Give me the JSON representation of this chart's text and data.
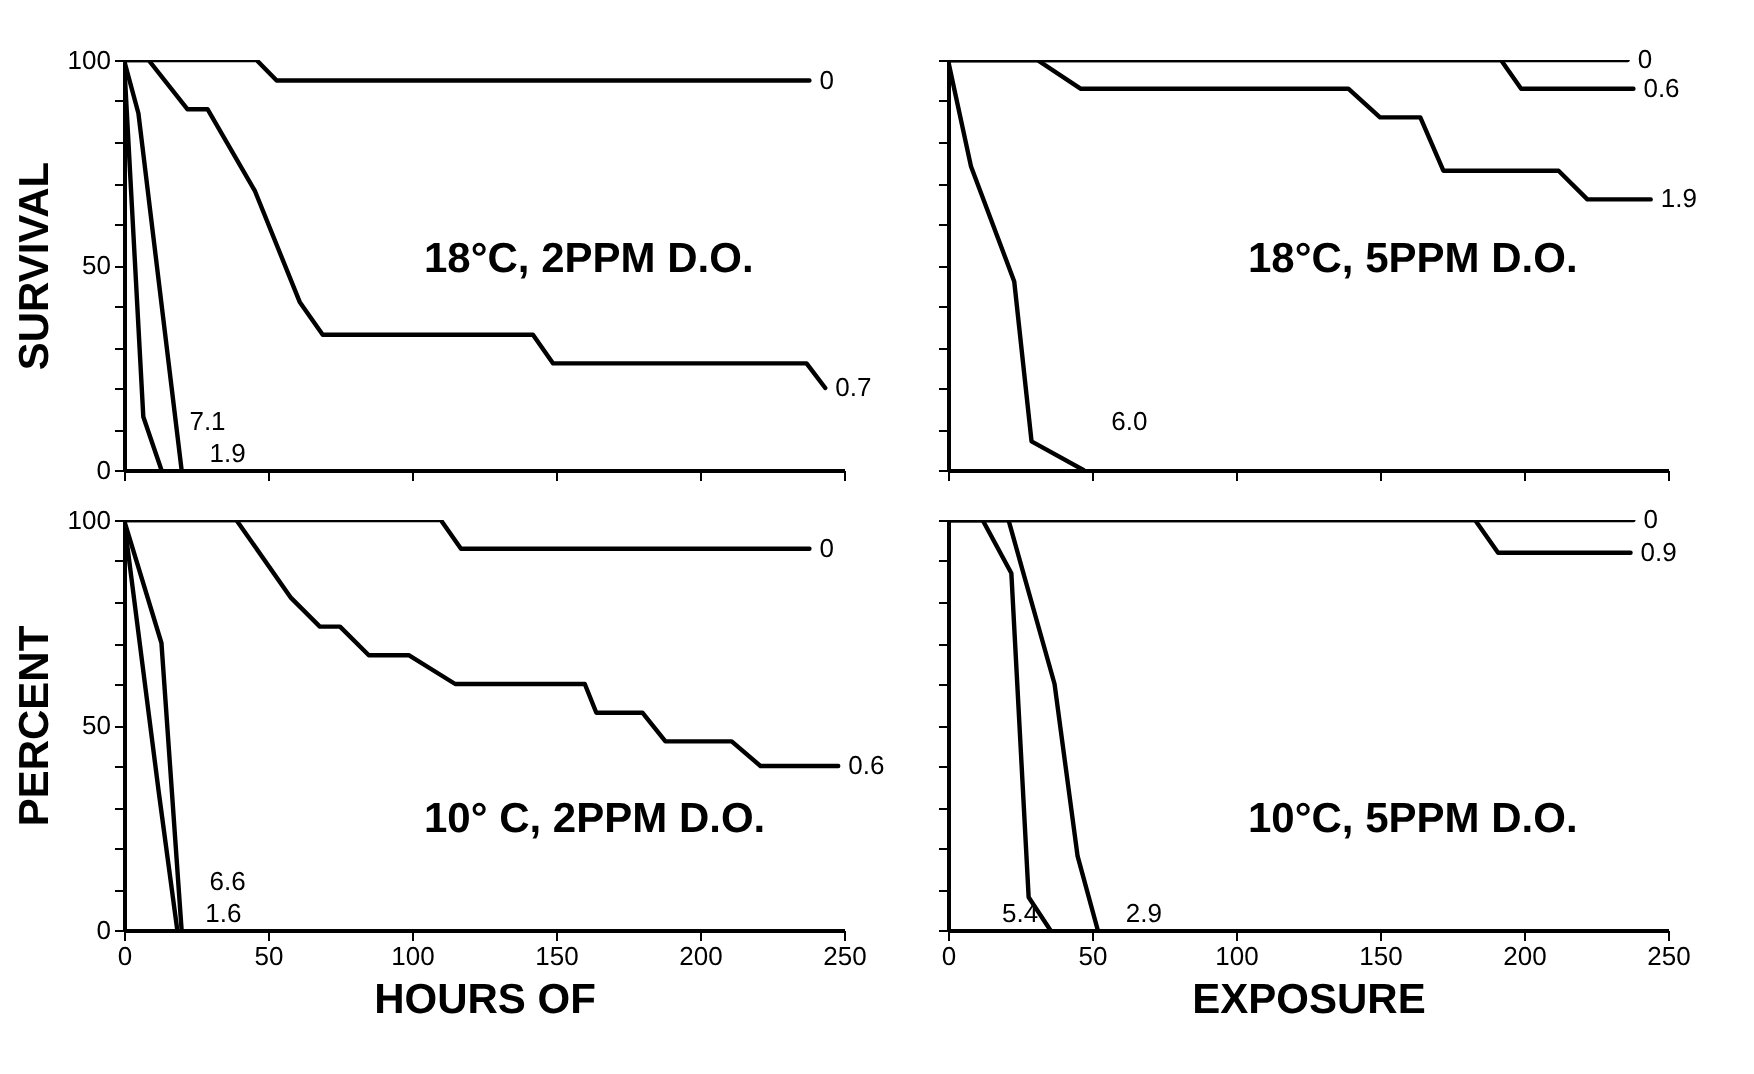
{
  "chart_data": [
    {
      "type": "line",
      "title": "18°C, 2PPM D.O.",
      "ylabel": "SURVIVAL",
      "xlim": [
        0,
        250
      ],
      "ylim": [
        0,
        100
      ],
      "xticks": [
        0,
        50,
        100,
        150,
        200,
        250
      ],
      "yticks": [
        0,
        {
          "value": 10,
          "label": null
        },
        {
          "value": 20,
          "label": null
        },
        {
          "value": 30,
          "label": null
        },
        {
          "value": 40,
          "label": null
        },
        50,
        {
          "value": 60,
          "label": null
        },
        {
          "value": 70,
          "label": null
        },
        {
          "value": 80,
          "label": null
        },
        {
          "value": 90,
          "label": null
        },
        100
      ],
      "tick_labels": "y",
      "series": [
        {
          "name": "0",
          "color": "#000000",
          "x": [
            0,
            46,
            53,
            238
          ],
          "values": [
            100,
            100,
            95,
            95
          ]
        },
        {
          "name": "0.7",
          "color": "#000000",
          "x": [
            0,
            8.5,
            22,
            29,
            45.5,
            61,
            69,
            142,
            149,
            237,
            243.5
          ],
          "values": [
            100,
            100,
            88,
            88,
            68,
            41,
            33,
            33,
            26,
            26,
            20
          ]
        },
        {
          "name": "7.1",
          "color": "#000000",
          "x": [
            0,
            6.7,
            13
          ],
          "values": [
            100,
            13,
            0
          ]
        },
        {
          "name": "1.9",
          "color": "#000000",
          "x": [
            0,
            5,
            20
          ],
          "values": [
            100,
            87,
            0
          ]
        }
      ]
    },
    {
      "type": "line",
      "title": "18°C, 5PPM D.O.",
      "xlim": [
        0,
        250
      ],
      "ylim": [
        0,
        100
      ],
      "xticks": [
        0,
        50,
        100,
        150,
        200,
        250
      ],
      "yticks": [
        0,
        {
          "value": 10,
          "label": null
        },
        {
          "value": 20,
          "label": null
        },
        {
          "value": 30,
          "label": null
        },
        {
          "value": 40,
          "label": null
        },
        50,
        {
          "value": 60,
          "label": null
        },
        {
          "value": 70,
          "label": null
        },
        {
          "value": 80,
          "label": null
        },
        {
          "value": 90,
          "label": null
        },
        100
      ],
      "tick_labels": false,
      "series": [
        {
          "name": "0",
          "color": "#000000",
          "x": [
            0,
            236
          ],
          "values": [
            100,
            100
          ]
        },
        {
          "name": "0.6",
          "color": "#000000",
          "x": [
            0,
            192,
            199,
            238
          ],
          "values": [
            100,
            100,
            93,
            93
          ]
        },
        {
          "name": "1.9",
          "color": "#000000",
          "x": [
            0,
            31,
            46,
            139,
            150,
            164,
            172,
            212,
            222,
            244
          ],
          "values": [
            100,
            100,
            93,
            93,
            86,
            86,
            73,
            73,
            66,
            66
          ]
        },
        {
          "name": "6.0",
          "color": "#000000",
          "x": [
            0,
            8,
            23,
            29,
            47
          ],
          "values": [
            100,
            74,
            46,
            7,
            0
          ]
        }
      ]
    },
    {
      "type": "line",
      "title": "10° C, 2PPM D.O.",
      "ylabel": "PERCENT",
      "xlabel": "HOURS OF",
      "xlim": [
        0,
        250
      ],
      "ylim": [
        0,
        100
      ],
      "xticks": [
        0,
        50,
        100,
        150,
        200,
        250
      ],
      "yticks": [
        0,
        {
          "value": 10,
          "label": null
        },
        {
          "value": 20,
          "label": null
        },
        {
          "value": 30,
          "label": null
        },
        {
          "value": 40,
          "label": null
        },
        50,
        {
          "value": 60,
          "label": null
        },
        {
          "value": 70,
          "label": null
        },
        {
          "value": 80,
          "label": null
        },
        {
          "value": 90,
          "label": null
        },
        100
      ],
      "series": [
        {
          "name": "0",
          "color": "#000000",
          "x": [
            0,
            110,
            117,
            238
          ],
          "values": [
            100,
            100,
            93,
            93
          ]
        },
        {
          "name": "0.6",
          "color": "#000000",
          "x": [
            0,
            39,
            58,
            68,
            75,
            85,
            99,
            115,
            160,
            164,
            180,
            188,
            211,
            221,
            248
          ],
          "values": [
            100,
            100,
            81,
            74,
            74,
            67,
            67,
            60,
            60,
            53,
            53,
            46,
            46,
            40,
            40
          ]
        },
        {
          "name": "6.6",
          "color": "#000000",
          "x": [
            0,
            13,
            20
          ],
          "values": [
            100,
            70,
            0
          ]
        },
        {
          "name": "1.6",
          "color": "#000000",
          "x": [
            0,
            12,
            18.5
          ],
          "values": [
            100,
            34,
            0
          ]
        }
      ]
    },
    {
      "type": "line",
      "title": "10°C, 5PPM D.O.",
      "xlabel": "EXPOSURE",
      "xlim": [
        0,
        250
      ],
      "ylim": [
        0,
        100
      ],
      "xticks": [
        0,
        50,
        100,
        150,
        200,
        250
      ],
      "yticks": [
        0,
        {
          "value": 10,
          "label": null
        },
        {
          "value": 20,
          "label": null
        },
        {
          "value": 30,
          "label": null
        },
        {
          "value": 40,
          "label": null
        },
        50,
        {
          "value": 60,
          "label": null
        },
        {
          "value": 70,
          "label": null
        },
        {
          "value": 80,
          "label": null
        },
        {
          "value": 90,
          "label": null
        },
        100
      ],
      "tick_labels": "x",
      "series": [
        {
          "name": "0",
          "color": "#000000",
          "x": [
            0,
            238
          ],
          "values": [
            100,
            100
          ]
        },
        {
          "name": "0.9",
          "color": "#000000",
          "x": [
            0,
            183,
            191,
            237
          ],
          "values": [
            100,
            100,
            92,
            92
          ]
        },
        {
          "name": "5.4",
          "color": "#000000",
          "x": [
            0,
            12,
            22,
            28,
            35.5
          ],
          "values": [
            100,
            100,
            87,
            8,
            0
          ]
        },
        {
          "name": "2.9",
          "color": "#000000",
          "x": [
            0,
            21,
            37,
            45,
            52
          ],
          "values": [
            100,
            100,
            60,
            18,
            0
          ]
        }
      ]
    }
  ]
}
